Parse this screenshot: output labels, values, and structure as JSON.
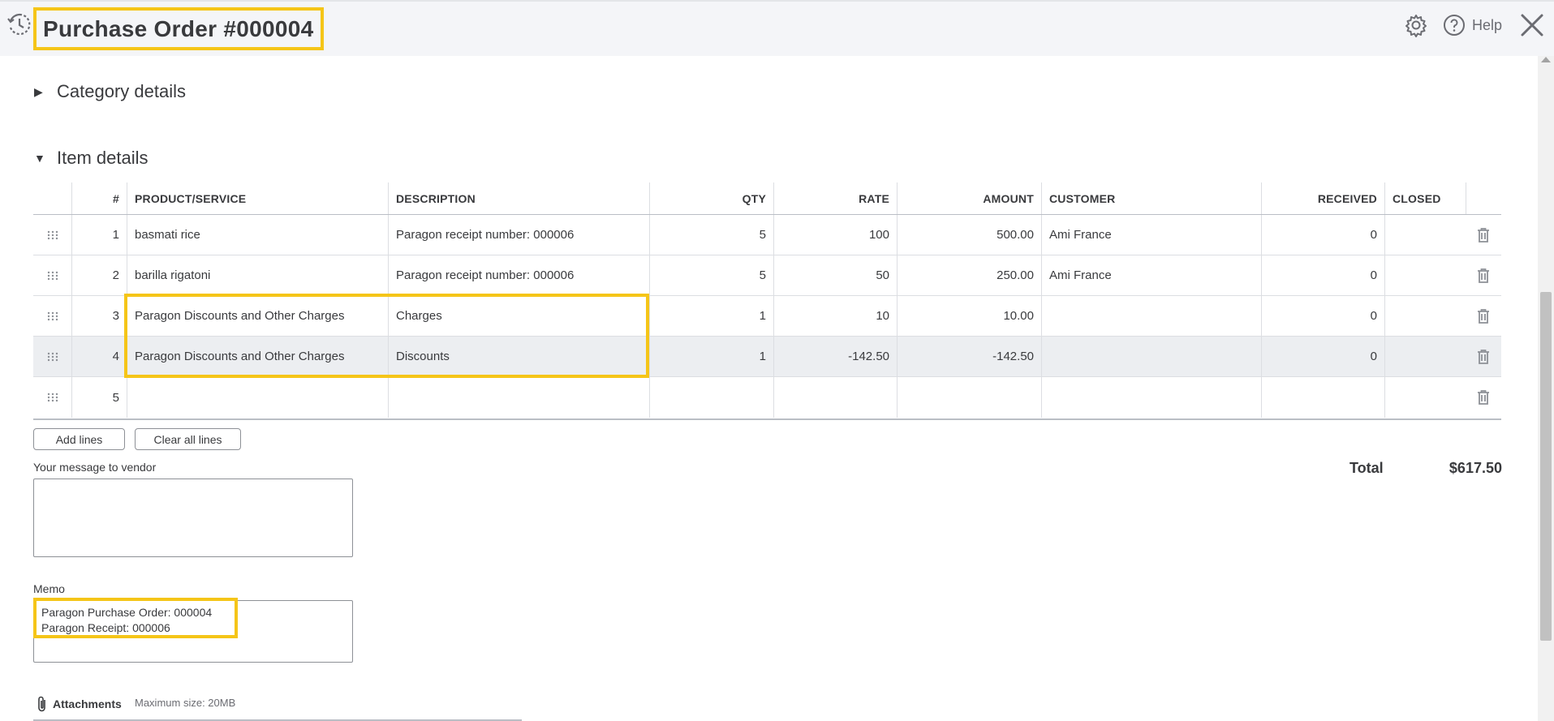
{
  "header": {
    "title": "Purchase Order #000004",
    "help_label": "Help"
  },
  "sections": {
    "category_details": "Category details",
    "item_details": "Item details"
  },
  "table": {
    "columns": {
      "num": "#",
      "product": "PRODUCT/SERVICE",
      "description": "DESCRIPTION",
      "qty": "QTY",
      "rate": "RATE",
      "amount": "AMOUNT",
      "customer": "CUSTOMER",
      "received": "RECEIVED",
      "closed": "CLOSED"
    },
    "rows": [
      {
        "num": "1",
        "product": "basmati rice",
        "description": "Paragon receipt number: 000006",
        "qty": "5",
        "rate": "100",
        "amount": "500.00",
        "customer": "Ami France",
        "received": "0",
        "closed": ""
      },
      {
        "num": "2",
        "product": "barilla rigatoni",
        "description": "Paragon receipt number: 000006",
        "qty": "5",
        "rate": "50",
        "amount": "250.00",
        "customer": "Ami France",
        "received": "0",
        "closed": ""
      },
      {
        "num": "3",
        "product": "Paragon Discounts and Other Charges",
        "description": "Charges",
        "qty": "1",
        "rate": "10",
        "amount": "10.00",
        "customer": "",
        "received": "0",
        "closed": ""
      },
      {
        "num": "4",
        "product": "Paragon Discounts and Other Charges",
        "description": "Discounts",
        "qty": "1",
        "rate": "-142.50",
        "amount": "-142.50",
        "customer": "",
        "received": "0",
        "closed": ""
      },
      {
        "num": "5",
        "product": "",
        "description": "",
        "qty": "",
        "rate": "",
        "amount": "",
        "customer": "",
        "received": "",
        "closed": ""
      }
    ]
  },
  "buttons": {
    "add_lines": "Add lines",
    "clear_all_lines": "Clear all lines"
  },
  "totals": {
    "label": "Total",
    "value": "$617.50"
  },
  "vendor_message": {
    "label": "Your message to vendor",
    "value": ""
  },
  "memo": {
    "label": "Memo",
    "line1": "Paragon Purchase Order: 000004",
    "line2": "Paragon Receipt: 000006"
  },
  "attachments": {
    "label": "Attachments",
    "note": "Maximum size: 20MB"
  },
  "colors": {
    "highlight": "#f5c518",
    "header_bg": "#f4f5f8",
    "selected_row": "#eceef1"
  }
}
